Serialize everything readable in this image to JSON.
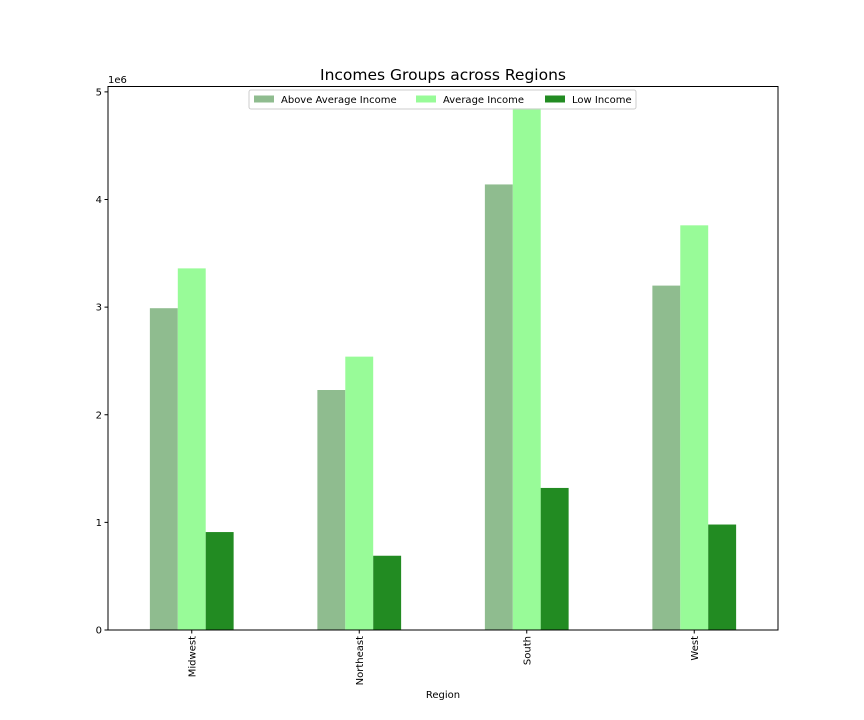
{
  "chart_data": {
    "type": "bar",
    "title": "Incomes Groups across Regions",
    "xlabel": "Region",
    "ylabel": "",
    "y_scale_label": "1e6",
    "y_multiplier": 1000000,
    "ylim": [
      0,
      5.05
    ],
    "yticks": [
      0,
      1,
      2,
      3,
      4,
      5
    ],
    "categories": [
      "Midwest",
      "Northeast",
      "South",
      "West"
    ],
    "series": [
      {
        "name": "Above Average Income",
        "color": "#8fbc8f",
        "values": [
          2.99,
          2.23,
          4.14,
          3.2
        ]
      },
      {
        "name": "Average Income",
        "color": "#98fb98",
        "values": [
          3.36,
          2.54,
          4.85,
          3.76
        ]
      },
      {
        "name": "Low Income",
        "color": "#228b22",
        "values": [
          0.91,
          0.69,
          1.32,
          0.98
        ]
      }
    ],
    "legend": {
      "position": "upper-center",
      "ncol": 3
    },
    "grid": false
  }
}
